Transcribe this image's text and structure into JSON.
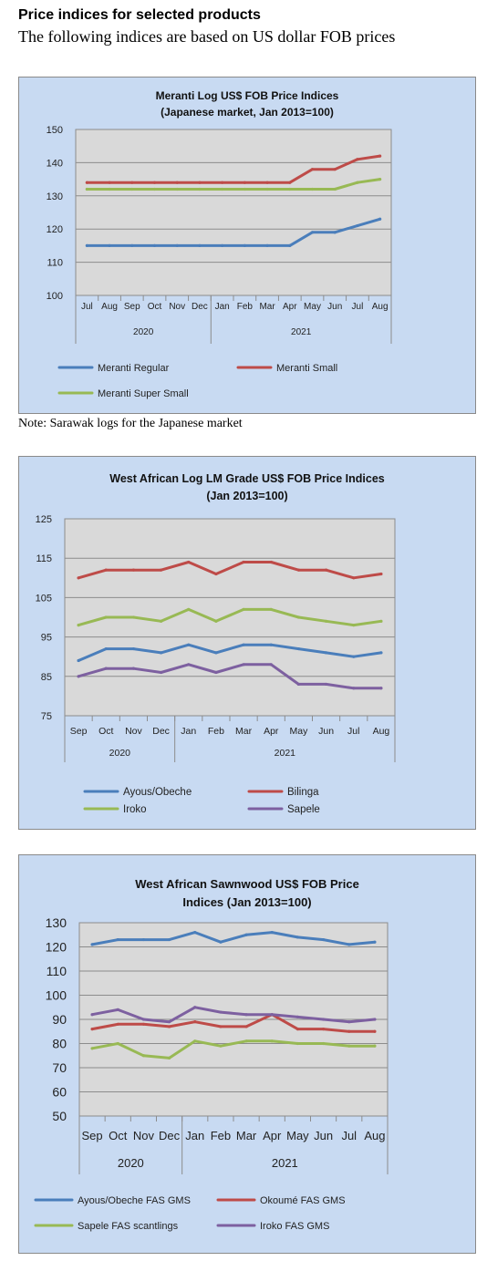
{
  "header": {
    "title": "Price indices for selected products",
    "subtitle": "The following indices are based on US dollar FOB prices"
  },
  "note": "Note: Sarawak logs for the Japanese market",
  "chart_data": [
    {
      "type": "line",
      "title_lines": [
        "Meranti Log US$ FOB Price Indices",
        "(Japanese market, Jan 2013=100)"
      ],
      "categories": [
        "Jul",
        "Aug",
        "Sep",
        "Oct",
        "Nov",
        "Dec",
        "Jan",
        "Feb",
        "Mar",
        "Apr",
        "May",
        "Jun",
        "Jul",
        "Aug"
      ],
      "year_groups": [
        {
          "label": "2020",
          "count": 6
        },
        {
          "label": "2021",
          "count": 8
        }
      ],
      "ylim": [
        100,
        150
      ],
      "yticks": [
        "100",
        "110",
        "120",
        "130",
        "140",
        "150"
      ],
      "grid": true,
      "legend_position": "bottom",
      "series": [
        {
          "name": "Meranti Regular",
          "color": "#4a7ebb",
          "values": [
            115,
            115,
            115,
            115,
            115,
            115,
            115,
            115,
            115,
            115,
            119,
            119,
            121,
            123
          ]
        },
        {
          "name": "Meranti Small",
          "color": "#be4b48",
          "values": [
            134,
            134,
            134,
            134,
            134,
            134,
            134,
            134,
            134,
            134,
            138,
            138,
            141,
            142
          ]
        },
        {
          "name": "Meranti Super Small",
          "color": "#98b954",
          "values": [
            132,
            132,
            132,
            132,
            132,
            132,
            132,
            132,
            132,
            132,
            132,
            132,
            134,
            135
          ]
        }
      ]
    },
    {
      "type": "line",
      "title_lines": [
        "West African Log LM Grade US$ FOB Price Indices",
        "(Jan 2013=100)"
      ],
      "categories": [
        "Sep",
        "Oct",
        "Nov",
        "Dec",
        "Jan",
        "Feb",
        "Mar",
        "Apr",
        "May",
        "Jun",
        "Jul",
        "Aug"
      ],
      "year_groups": [
        {
          "label": "2020",
          "count": 4
        },
        {
          "label": "2021",
          "count": 8
        }
      ],
      "ylim": [
        75,
        125
      ],
      "yticks": [
        "75",
        "85",
        "95",
        "105",
        "115",
        "125"
      ],
      "grid": true,
      "legend_position": "bottom",
      "series": [
        {
          "name": "Ayous/Obeche",
          "color": "#4a7ebb",
          "values": [
            89,
            92,
            92,
            91,
            93,
            91,
            93,
            93,
            92,
            91,
            90,
            91
          ]
        },
        {
          "name": "Bilinga",
          "color": "#be4b48",
          "values": [
            110,
            112,
            112,
            112,
            114,
            111,
            114,
            114,
            112,
            112,
            110,
            111
          ]
        },
        {
          "name": "Iroko",
          "color": "#98b954",
          "values": [
            98,
            100,
            100,
            99,
            102,
            99,
            102,
            102,
            100,
            99,
            98,
            99
          ]
        },
        {
          "name": "Sapele",
          "color": "#7d60a0",
          "values": [
            85,
            87,
            87,
            86,
            88,
            86,
            88,
            88,
            83,
            83,
            82,
            82
          ]
        }
      ]
    },
    {
      "type": "line",
      "title_lines": [
        "West African Sawnwood US$ FOB Price",
        "Indices (Jan 2013=100)"
      ],
      "categories": [
        "Sep",
        "Oct",
        "Nov",
        "Dec",
        "Jan",
        "Feb",
        "Mar",
        "Apr",
        "May",
        "Jun",
        "Jul",
        "Aug"
      ],
      "year_groups": [
        {
          "label": "2020",
          "count": 4
        },
        {
          "label": "2021",
          "count": 8
        }
      ],
      "ylim": [
        50,
        130
      ],
      "yticks": [
        "50",
        "60",
        "70",
        "80",
        "90",
        "100",
        "110",
        "120",
        "130"
      ],
      "grid": true,
      "legend_position": "bottom",
      "series": [
        {
          "name": "Ayous/Obeche FAS GMS",
          "color": "#4a7ebb",
          "values": [
            121,
            123,
            123,
            123,
            126,
            122,
            125,
            126,
            124,
            123,
            121,
            122
          ]
        },
        {
          "name": "Okoumé FAS GMS",
          "color": "#be4b48",
          "values": [
            86,
            88,
            88,
            87,
            89,
            87,
            87,
            92,
            86,
            86,
            85,
            85
          ]
        },
        {
          "name": "Sapele FAS scantlings",
          "color": "#98b954",
          "values": [
            78,
            80,
            75,
            74,
            81,
            79,
            81,
            81,
            80,
            80,
            79,
            79
          ]
        },
        {
          "name": "Iroko FAS GMS",
          "color": "#7d60a0",
          "values": [
            92,
            94,
            90,
            89,
            95,
            93,
            92,
            92,
            91,
            90,
            89,
            90
          ]
        }
      ]
    }
  ]
}
